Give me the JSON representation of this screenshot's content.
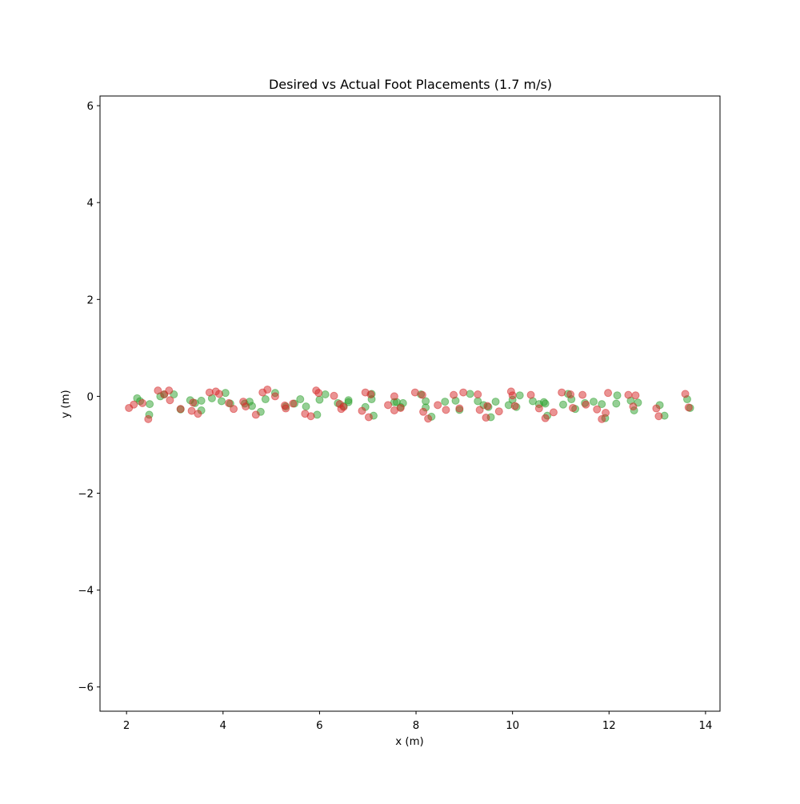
{
  "chart_data": {
    "type": "scatter",
    "title": "Desired vs Actual Foot Placements (1.7 m/s)",
    "xlabel": "x (m)",
    "ylabel": "y (m)",
    "xlim": [
      1.45,
      14.3
    ],
    "ylim": [
      -6.5,
      6.2
    ],
    "xticks": [
      2,
      4,
      6,
      8,
      10,
      12,
      14
    ],
    "yticks": [
      -6,
      -4,
      -2,
      0,
      2,
      4,
      6
    ],
    "xtick_labels": [
      "2",
      "4",
      "6",
      "8",
      "10",
      "12",
      "14"
    ],
    "ytick_labels": [
      "−6",
      "−4",
      "−2",
      "0",
      "2",
      "4",
      "6"
    ],
    "grid": false,
    "legend": "none",
    "series": [
      {
        "color": "#2ca02c",
        "alpha": 0.5,
        "points": [
          [
            2.22,
            -0.04
          ],
          [
            2.28,
            -0.1
          ],
          [
            2.47,
            -0.38
          ],
          [
            2.48,
            -0.16
          ],
          [
            2.7,
            0.0
          ],
          [
            2.78,
            0.04
          ],
          [
            2.98,
            0.04
          ],
          [
            3.12,
            -0.27
          ],
          [
            3.32,
            -0.08
          ],
          [
            3.42,
            -0.14
          ],
          [
            3.55,
            -0.29
          ],
          [
            3.55,
            -0.09
          ],
          [
            3.77,
            -0.04
          ],
          [
            3.97,
            -0.1
          ],
          [
            4.05,
            0.07
          ],
          [
            4.15,
            -0.15
          ],
          [
            4.45,
            -0.15
          ],
          [
            4.55,
            -0.11
          ],
          [
            4.6,
            -0.2
          ],
          [
            4.78,
            -0.32
          ],
          [
            4.88,
            -0.06
          ],
          [
            5.08,
            0.07
          ],
          [
            5.3,
            -0.21
          ],
          [
            5.48,
            -0.15
          ],
          [
            5.6,
            -0.06
          ],
          [
            5.72,
            -0.21
          ],
          [
            5.95,
            -0.38
          ],
          [
            6.0,
            -0.07
          ],
          [
            6.12,
            0.04
          ],
          [
            6.38,
            -0.14
          ],
          [
            6.5,
            -0.2
          ],
          [
            6.6,
            -0.08
          ],
          [
            6.6,
            -0.12
          ],
          [
            6.95,
            -0.22
          ],
          [
            7.08,
            0.05
          ],
          [
            7.08,
            -0.06
          ],
          [
            7.12,
            -0.4
          ],
          [
            7.55,
            -0.12
          ],
          [
            7.6,
            -0.12
          ],
          [
            7.68,
            -0.22
          ],
          [
            7.73,
            -0.14
          ],
          [
            8.1,
            0.04
          ],
          [
            8.2,
            -0.1
          ],
          [
            8.2,
            -0.23
          ],
          [
            8.32,
            -0.42
          ],
          [
            8.6,
            -0.11
          ],
          [
            8.82,
            -0.09
          ],
          [
            8.9,
            -0.28
          ],
          [
            9.12,
            0.05
          ],
          [
            9.28,
            -0.1
          ],
          [
            9.4,
            -0.18
          ],
          [
            9.5,
            -0.22
          ],
          [
            9.55,
            -0.43
          ],
          [
            9.65,
            -0.11
          ],
          [
            9.92,
            -0.18
          ],
          [
            10.0,
            -0.07
          ],
          [
            10.08,
            -0.22
          ],
          [
            10.15,
            0.02
          ],
          [
            10.42,
            -0.1
          ],
          [
            10.55,
            -0.16
          ],
          [
            10.65,
            -0.12
          ],
          [
            10.68,
            -0.15
          ],
          [
            10.72,
            -0.4
          ],
          [
            11.05,
            -0.17
          ],
          [
            11.15,
            0.05
          ],
          [
            11.22,
            -0.06
          ],
          [
            11.3,
            -0.26
          ],
          [
            11.5,
            -0.14
          ],
          [
            11.68,
            -0.11
          ],
          [
            11.85,
            -0.16
          ],
          [
            11.92,
            -0.45
          ],
          [
            12.15,
            -0.15
          ],
          [
            12.17,
            0.02
          ],
          [
            12.45,
            -0.09
          ],
          [
            12.52,
            -0.29
          ],
          [
            12.6,
            -0.13
          ],
          [
            13.05,
            -0.18
          ],
          [
            13.15,
            -0.4
          ],
          [
            13.62,
            -0.06
          ],
          [
            13.68,
            -0.24
          ]
        ]
      },
      {
        "color": "#d62728",
        "alpha": 0.5,
        "points": [
          [
            2.05,
            -0.24
          ],
          [
            2.15,
            -0.17
          ],
          [
            2.33,
            -0.14
          ],
          [
            2.45,
            -0.47
          ],
          [
            2.65,
            0.12
          ],
          [
            2.78,
            0.04
          ],
          [
            2.88,
            0.12
          ],
          [
            2.9,
            -0.08
          ],
          [
            3.12,
            -0.26
          ],
          [
            3.35,
            -0.3
          ],
          [
            3.38,
            -0.13
          ],
          [
            3.48,
            -0.36
          ],
          [
            3.72,
            0.08
          ],
          [
            3.85,
            0.1
          ],
          [
            3.92,
            0.05
          ],
          [
            4.12,
            -0.14
          ],
          [
            4.22,
            -0.26
          ],
          [
            4.42,
            -0.11
          ],
          [
            4.47,
            -0.21
          ],
          [
            4.68,
            -0.38
          ],
          [
            4.82,
            0.08
          ],
          [
            4.92,
            0.14
          ],
          [
            5.08,
            0.0
          ],
          [
            5.28,
            -0.19
          ],
          [
            5.3,
            -0.25
          ],
          [
            5.45,
            -0.15
          ],
          [
            5.7,
            -0.36
          ],
          [
            5.82,
            -0.41
          ],
          [
            5.93,
            0.12
          ],
          [
            5.98,
            0.07
          ],
          [
            6.3,
            0.01
          ],
          [
            6.42,
            -0.16
          ],
          [
            6.45,
            -0.26
          ],
          [
            6.5,
            -0.22
          ],
          [
            6.88,
            -0.3
          ],
          [
            6.95,
            0.08
          ],
          [
            7.02,
            -0.43
          ],
          [
            7.06,
            0.04
          ],
          [
            7.42,
            -0.18
          ],
          [
            7.55,
            0.0
          ],
          [
            7.55,
            -0.29
          ],
          [
            7.68,
            -0.24
          ],
          [
            7.98,
            0.08
          ],
          [
            8.13,
            0.03
          ],
          [
            8.15,
            -0.32
          ],
          [
            8.25,
            -0.46
          ],
          [
            8.45,
            -0.18
          ],
          [
            8.62,
            -0.28
          ],
          [
            8.78,
            0.03
          ],
          [
            8.9,
            -0.25
          ],
          [
            8.98,
            0.08
          ],
          [
            9.28,
            0.04
          ],
          [
            9.32,
            -0.28
          ],
          [
            9.45,
            -0.44
          ],
          [
            9.48,
            -0.2
          ],
          [
            9.72,
            -0.31
          ],
          [
            9.97,
            0.1
          ],
          [
            10.0,
            0.02
          ],
          [
            10.05,
            -0.2
          ],
          [
            10.38,
            0.03
          ],
          [
            10.55,
            -0.25
          ],
          [
            10.68,
            -0.45
          ],
          [
            10.85,
            -0.33
          ],
          [
            11.02,
            0.08
          ],
          [
            11.2,
            0.04
          ],
          [
            11.25,
            -0.24
          ],
          [
            11.45,
            0.03
          ],
          [
            11.52,
            -0.17
          ],
          [
            11.75,
            -0.27
          ],
          [
            11.85,
            -0.47
          ],
          [
            11.93,
            -0.34
          ],
          [
            11.98,
            0.07
          ],
          [
            12.4,
            0.03
          ],
          [
            12.5,
            -0.21
          ],
          [
            12.55,
            0.02
          ],
          [
            12.98,
            -0.25
          ],
          [
            13.03,
            -0.41
          ],
          [
            13.58,
            0.05
          ],
          [
            13.65,
            -0.23
          ]
        ]
      }
    ]
  }
}
